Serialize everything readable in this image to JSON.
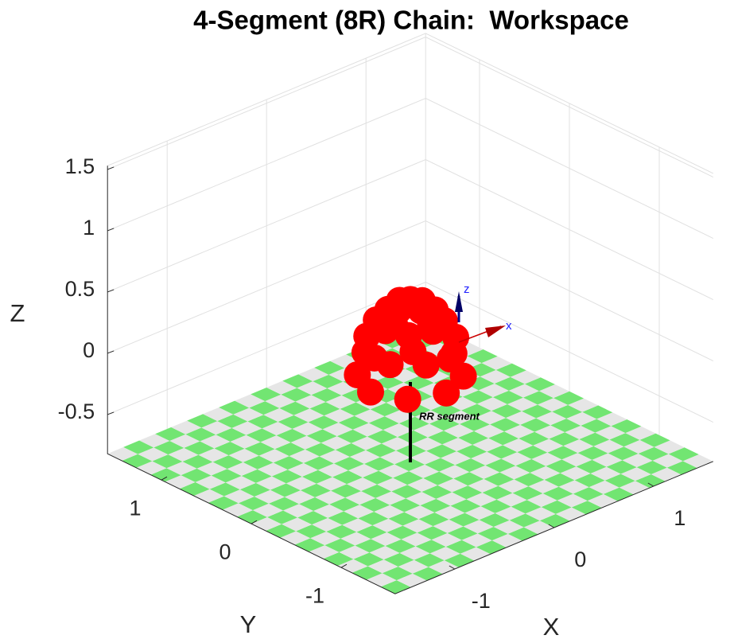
{
  "chart_data": {
    "type": "scatter3d",
    "title": "4-Segment (8R) Chain:  Workspace",
    "xlabel": "X",
    "ylabel": "Y",
    "zlabel": "Z",
    "xlim": [
      -1.6,
      1.6
    ],
    "ylim": [
      -1.6,
      1.6
    ],
    "zlim": [
      -0.82,
      1.53
    ],
    "xticks": [
      -1,
      0,
      1
    ],
    "yticks": [
      -1,
      0,
      1
    ],
    "zticks": [
      -0.5,
      0,
      0.5,
      1,
      1.5
    ],
    "grid": true,
    "floor_colors": [
      "#72e572",
      "#e6e6e6"
    ],
    "series": [
      {
        "color": "#ff0000",
        "x": [
          0.4,
          0.28,
          0,
          -0.28,
          -0.4,
          -0.28,
          0,
          0.28,
          0.33,
          0.14,
          -0.14,
          -0.33,
          -0.33,
          -0.14,
          0.14,
          0.33,
          0.25,
          0.18,
          0,
          -0.18,
          -0.25,
          -0.18,
          0,
          0.18,
          0.12,
          0,
          -0.12,
          0,
          0
        ],
        "y": [
          0,
          0.28,
          0.4,
          0.28,
          0,
          -0.28,
          -0.4,
          -0.28,
          0.14,
          0.33,
          0.33,
          0.14,
          -0.14,
          -0.33,
          -0.33,
          -0.14,
          0,
          0.18,
          0.25,
          0.18,
          0,
          -0.18,
          -0.25,
          -0.18,
          0,
          0.12,
          0,
          -0.12,
          0
        ],
        "z": [
          -0.15,
          -0.15,
          -0.15,
          -0.15,
          -0.15,
          -0.15,
          -0.15,
          -0.15,
          0.1,
          0.1,
          0.1,
          0.1,
          0.1,
          0.1,
          0.1,
          0.1,
          0.3,
          0.3,
          0.3,
          0.3,
          0.3,
          0.3,
          0.3,
          0.3,
          0.42,
          0.42,
          0.42,
          0.42,
          0.47
        ]
      }
    ],
    "annotation": "RR segment",
    "frame_labels": [
      "z",
      "x"
    ]
  }
}
